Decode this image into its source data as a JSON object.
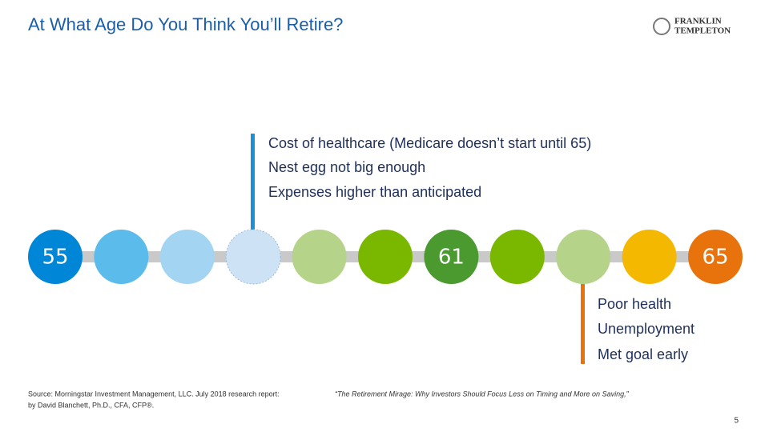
{
  "header": {
    "title": "At What Age Do You Think You’ll Retire?",
    "logo": [
      "FRANKLIN",
      "TEMPLETON"
    ]
  },
  "timeline": {
    "labels": [
      "55",
      "61",
      "65"
    ]
  },
  "early_reasons": [
    "Cost of healthcare (Medicare doesn’t start until 65)",
    "Nest egg not big enough",
    "Expenses higher than anticipated"
  ],
  "late_reasons": [
    "Poor health",
    "Unemployment",
    "Met goal early"
  ],
  "footer": {
    "source": "Source: Morningstar Investment Management, LLC. July 2018 research report:",
    "report_title": "“The Retirement Mirage: Why Investors Should Focus Less on Timing and More on Saving,”",
    "author": "by David Blanchett, Ph.D., CFA, CFP®.",
    "page": "5"
  }
}
